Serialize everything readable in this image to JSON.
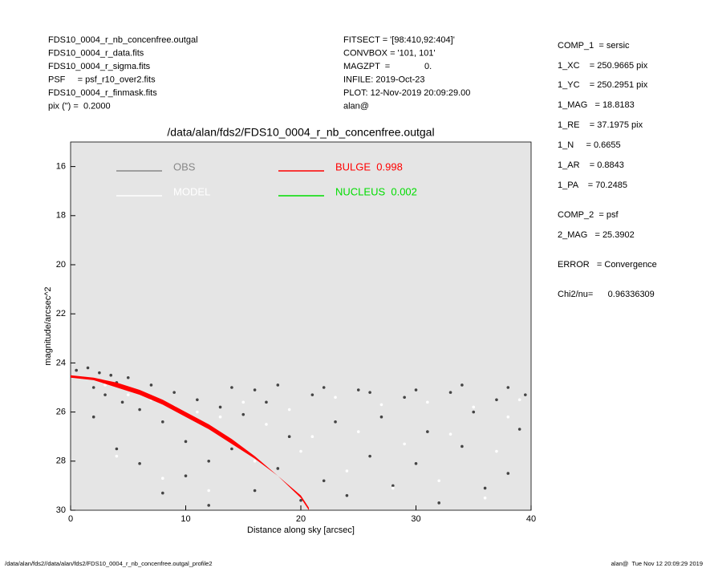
{
  "header_left": [
    "FDS10_0004_r_nb_concenfree.outgal",
    "FDS10_0004_r_data.fits",
    "FDS10_0004_r_sigma.fits",
    "PSF     = psf_r10_over2.fits",
    "FDS10_0004_r_finmask.fits",
    "pix (\") =  0.2000"
  ],
  "header_mid": [
    "FITSECT = '[98:410,92:404]'",
    "CONVBOX = '101, 101'",
    "MAGZPT  =              0.",
    "INFILE: 2019-Oct-23",
    "PLOT: 12-Nov-2019 20:09:29.00",
    "alan@"
  ],
  "params": [
    "COMP_1  = sersic",
    "1_XC    = 250.9665 pix",
    "1_YC    = 250.2951 pix",
    "1_MAG   = 18.8183",
    "1_RE    = 37.1975 pix",
    "1_N     = 0.6655",
    "1_AR    = 0.8843",
    "1_PA    = 70.2485",
    "COMP_2  = psf",
    "2_MAG   = 25.3902",
    "ERROR   = Convergence",
    "Chi2/nu=      0.96336309"
  ],
  "footer_left": "/data/alan/fds2//data/alan/fds2/FDS10_0004_r_nb_concenfree.outgal_profile2",
  "footer_right": "alan@  Tue Nov 12 20:09:29 2019",
  "chart_data": {
    "type": "scatter",
    "title": "/data/alan/fds2/FDS10_0004_r_nb_concenfree.outgal",
    "xlabel": "Distance along sky [arcsec]",
    "ylabel": "magnitude/arcsec^2",
    "xlim": [
      0,
      40
    ],
    "ylim": [
      30,
      15
    ],
    "xticks": [
      0,
      10,
      20,
      30,
      40
    ],
    "yticks": [
      16,
      18,
      20,
      22,
      24,
      26,
      28,
      30
    ],
    "background": "#e5e5e5",
    "series": [
      {
        "name": "OBS",
        "color": "#444444",
        "legend_color": "#888888",
        "x": [
          0.5,
          1,
          1.5,
          2,
          2.5,
          3,
          3.5,
          4,
          4.5,
          5,
          6,
          7,
          8,
          9,
          10,
          11,
          12,
          13,
          14,
          15,
          16,
          17,
          18,
          19,
          20,
          21,
          22,
          23,
          24,
          25,
          26,
          27,
          28,
          29,
          30,
          31,
          32,
          33,
          34,
          35,
          36,
          37,
          38,
          39,
          39.5,
          2,
          4,
          6,
          8,
          10,
          12,
          14,
          16,
          18,
          22,
          26,
          30,
          34,
          38
        ],
        "values": [
          24.3,
          24.6,
          24.2,
          25,
          24.4,
          25.3,
          24.5,
          24.8,
          25.6,
          24.6,
          25.9,
          24.9,
          26.4,
          25.2,
          27.2,
          25.5,
          28,
          25.8,
          27.5,
          26.1,
          29.2,
          25.6,
          28.3,
          27,
          29.6,
          25.3,
          28.8,
          26.4,
          29.4,
          25.1,
          27.8,
          26.2,
          29,
          25.4,
          28.1,
          26.8,
          29.7,
          25.2,
          27.4,
          26,
          29.1,
          25.5,
          28.5,
          26.7,
          25.3,
          26.2,
          27.5,
          28.1,
          29.3,
          28.6,
          29.8,
          25.0,
          25.1,
          24.9,
          25.0,
          25.2,
          25.1,
          24.9,
          25.0
        ]
      },
      {
        "name": "MODEL",
        "color": "#ffffff",
        "x": [
          1,
          3,
          5,
          7,
          9,
          11,
          13,
          15,
          17,
          19,
          21,
          23,
          25,
          27,
          29,
          31,
          33,
          35,
          37,
          39,
          4,
          8,
          12,
          16,
          20,
          24,
          28,
          32,
          36,
          38
        ],
        "values": [
          24.6,
          24.9,
          25.3,
          25.5,
          25.8,
          26,
          26.2,
          25.6,
          26.5,
          25.9,
          27,
          25.4,
          26.8,
          25.7,
          27.3,
          25.6,
          26.9,
          25.8,
          27.6,
          25.5,
          27.8,
          28.7,
          29.2,
          28,
          27.6,
          28.4,
          29.1,
          28.8,
          29.5,
          26.2
        ]
      },
      {
        "name": "BULGE  0.998",
        "color": "#ff0000",
        "band": true,
        "x": [
          0,
          2,
          4,
          6,
          8,
          10,
          12,
          14,
          16,
          18,
          20,
          20.7
        ],
        "values": [
          24.5,
          24.6,
          24.8,
          25.1,
          25.5,
          26.0,
          26.5,
          27.1,
          27.8,
          28.6,
          29.5,
          30
        ],
        "values_lower": [
          24.6,
          24.7,
          25.0,
          25.3,
          25.7,
          26.2,
          26.7,
          27.3,
          27.9,
          28.6,
          29.4,
          29.9
        ]
      },
      {
        "name": "NUCLEUS  0.002",
        "color": "#00dd00",
        "x": [],
        "values": []
      }
    ]
  }
}
